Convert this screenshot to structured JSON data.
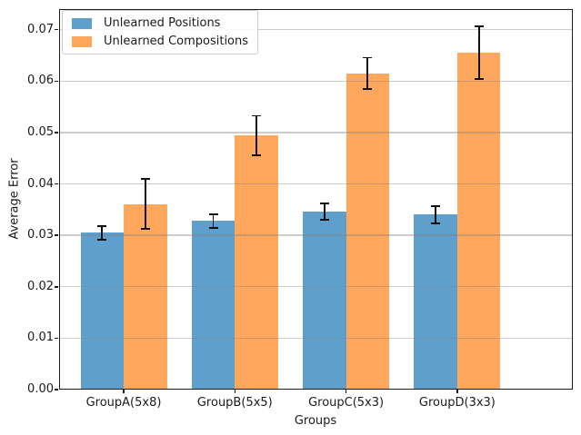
{
  "chart_data": {
    "type": "bar",
    "title": "",
    "xlabel": "Groups",
    "ylabel": "Average Error",
    "categories": [
      "GroupA(5x8)",
      "GroupB(5x5)",
      "GroupC(5x3)",
      "GroupD(3x3)"
    ],
    "series": [
      {
        "name": "Unlearned Positions",
        "color": "#5F9FCC",
        "values": [
          0.0305,
          0.0328,
          0.0346,
          0.034
        ],
        "errors": [
          0.0015,
          0.0015,
          0.0018,
          0.0018
        ]
      },
      {
        "name": "Unlearned Compositions",
        "color": "#FFA75C",
        "values": [
          0.0361,
          0.0494,
          0.0615,
          0.0655
        ],
        "errors": [
          0.005,
          0.004,
          0.0032,
          0.0053
        ]
      }
    ],
    "ylim": [
      0,
      0.074
    ],
    "yticks": [
      0.0,
      0.01,
      0.02,
      0.03,
      0.04,
      0.05,
      0.06,
      0.07
    ],
    "ytick_format": "0.00",
    "grid": "horizontal",
    "grid_color": "#c9c9c9",
    "error_bar_color": "#111111",
    "legend_position": "upper-left",
    "legend": [
      "Unlearned Positions",
      "Unlearned Compositions"
    ]
  }
}
